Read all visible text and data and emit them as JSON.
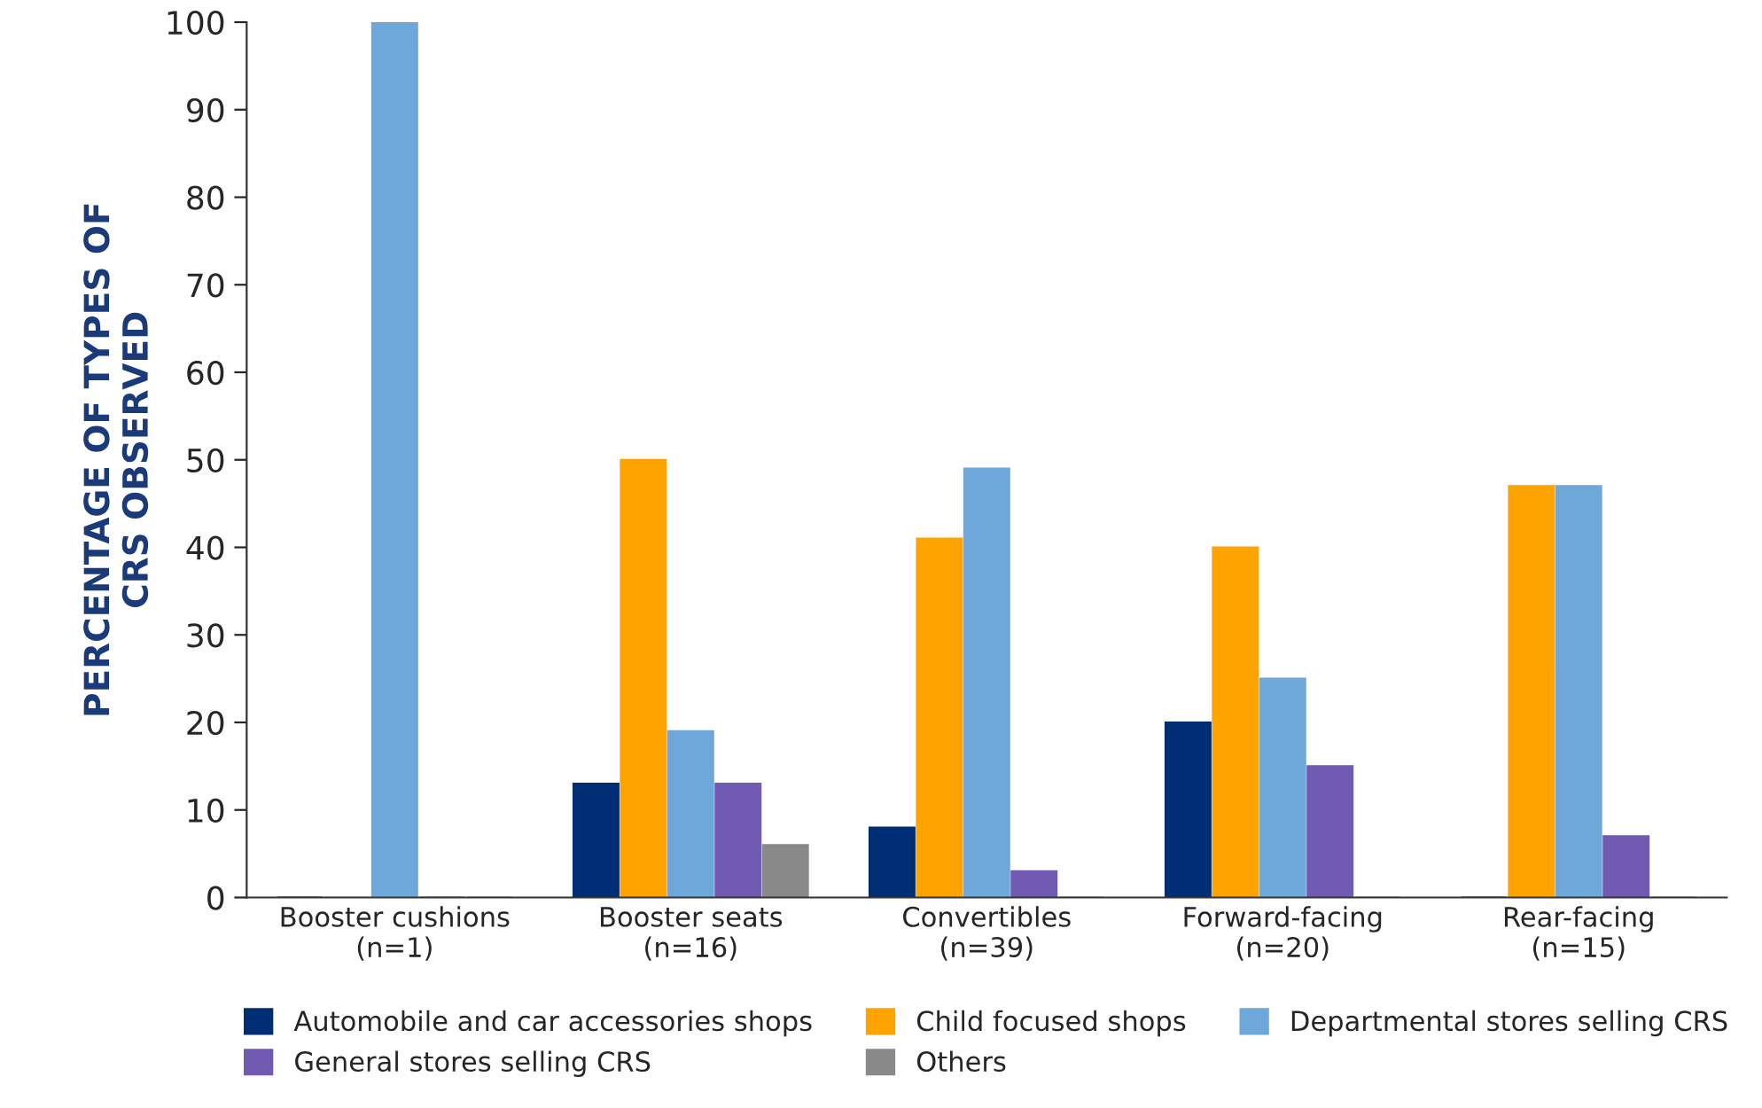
{
  "chart_data": {
    "type": "bar",
    "ylabel": "PERCENTAGE OF TYPES OF\nCRS OBSERVED",
    "categories": [
      "Booster cushions\n(n=1)",
      "Booster seats\n(n=16)",
      "Convertibles\n(n=39)",
      "Forward-facing\n(n=20)",
      "Rear-facing\n(n=15)"
    ],
    "series": [
      {
        "name": "Automobile and car accessories shops",
        "color": "#002e74",
        "values": [
          0,
          13,
          8,
          20,
          0
        ]
      },
      {
        "name": "Child focused shops",
        "color": "#ffa300",
        "values": [
          0,
          50,
          41,
          40,
          47
        ]
      },
      {
        "name": "Departmental stores selling CRS",
        "color": "#6ea8db",
        "values": [
          100,
          19,
          49,
          25,
          47
        ]
      },
      {
        "name": "General stores selling CRS",
        "color": "#705ab2",
        "values": [
          0,
          13,
          3,
          15,
          7
        ]
      },
      {
        "name": "Others",
        "color": "#898989",
        "values": [
          0,
          6,
          0,
          0,
          0
        ]
      }
    ],
    "ylim": [
      0,
      100
    ],
    "yticks": [
      0,
      10,
      20,
      30,
      40,
      50,
      60,
      70,
      80,
      90,
      100
    ],
    "grid": false,
    "legend": "bottom"
  }
}
